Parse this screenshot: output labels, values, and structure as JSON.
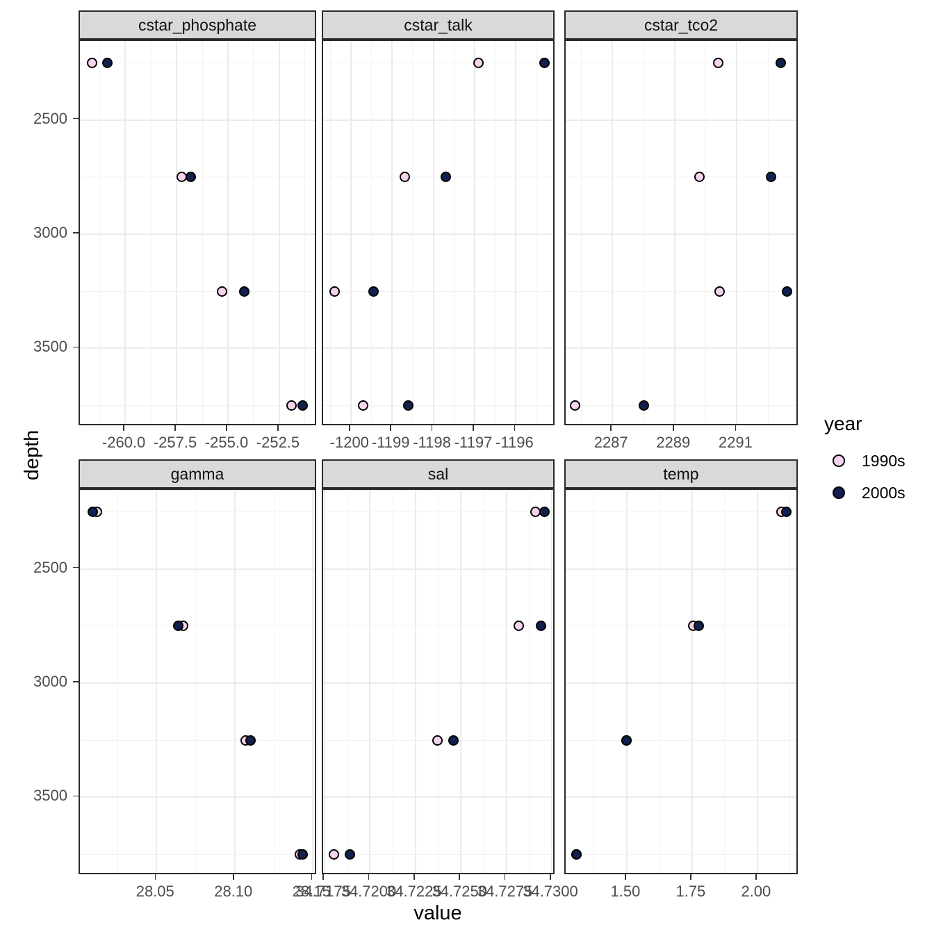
{
  "chart_data": {
    "type": "scatter",
    "title": "",
    "xlabel": "value",
    "ylabel": "depth",
    "facet_layout": {
      "rows": 2,
      "cols": 3
    },
    "legend": {
      "title": "year",
      "position": "right",
      "entries": [
        {
          "label": "1990s",
          "color": "#f6d3ec"
        },
        {
          "label": "2000s",
          "color": "#11204d"
        }
      ]
    },
    "style": {
      "point_outline": "#000000",
      "grid_major": "#ebebeb",
      "grid_minor": "#f3f3f3",
      "panel_border": "#2b2b2b",
      "strip_bg": "#d9d9d9",
      "tick_text": "#4d4d4d"
    },
    "y_axis": {
      "label": "depth",
      "reversed": true,
      "domain": [
        2154,
        3843
      ],
      "ticks": [
        2500,
        3000,
        3500
      ],
      "tick_labels": [
        "2500",
        "3000",
        "3500"
      ]
    },
    "depths": [
      2250,
      2750,
      3250,
      3750
    ],
    "facets": [
      {
        "name": "cstar_phosphate",
        "x_domain": [
          -262.2,
          -250.64
        ],
        "x_ticks": [
          -260.0,
          -257.5,
          -255.0,
          -252.5
        ],
        "x_tick_labels": [
          "-260.0",
          "-257.5",
          "-255.0",
          "-252.5"
        ],
        "series": [
          {
            "name": "1990s",
            "values": [
              -261.6,
              -257.25,
              -255.3,
              -251.9
            ]
          },
          {
            "name": "2000s",
            "values": [
              -260.85,
              -256.8,
              -254.2,
              -251.35
            ]
          }
        ]
      },
      {
        "name": "cstar_talk",
        "x_domain": [
          -1200.67,
          -1195.03
        ],
        "x_ticks": [
          -1200,
          -1199,
          -1198,
          -1197,
          -1196
        ],
        "x_tick_labels": [
          "-1200",
          "-1199",
          "-1198",
          "-1197",
          "-1196"
        ],
        "series": [
          {
            "name": "1990s",
            "values": [
              -1196.9,
              -1198.7,
              -1200.4,
              -1199.7
            ]
          },
          {
            "name": "2000s",
            "values": [
              -1195.3,
              -1197.7,
              -1199.45,
              -1198.6
            ]
          }
        ]
      },
      {
        "name": "cstar_tco2",
        "x_domain": [
          2285.5,
          2293.0
        ],
        "x_ticks": [
          2287,
          2289,
          2291
        ],
        "x_tick_labels": [
          "2287",
          "2289",
          "2291"
        ],
        "series": [
          {
            "name": "1990s",
            "values": [
              2290.4,
              2289.8,
              2290.45,
              2285.8
            ]
          },
          {
            "name": "2000s",
            "values": [
              2292.4,
              2292.1,
              2292.6,
              2288.0
            ]
          }
        ]
      },
      {
        "name": "gamma",
        "x_domain": [
          28.001,
          28.153
        ],
        "x_ticks": [
          28.05,
          28.1,
          28.15
        ],
        "x_tick_labels": [
          "28.05",
          "28.10",
          "28.15"
        ],
        "series": [
          {
            "name": "1990s",
            "values": [
              28.012,
              28.067,
              28.107,
              28.1415
            ]
          },
          {
            "name": "2000s",
            "values": [
              28.009,
              28.064,
              28.11,
              28.1435
            ]
          }
        ]
      },
      {
        "name": "sal",
        "x_domain": [
          34.71742,
          34.73023
        ],
        "x_ticks": [
          34.7175,
          34.72,
          34.7225,
          34.725,
          34.7275,
          34.73
        ],
        "x_tick_labels": [
          "34.7175",
          "34.7200",
          "34.7225",
          "34.7250",
          "34.7275",
          "34.7300"
        ],
        "series": [
          {
            "name": "1990s",
            "values": [
              34.7291,
              34.7282,
              34.7237,
              34.718
            ]
          },
          {
            "name": "2000s",
            "values": [
              34.7296,
              34.7294,
              34.7246,
              34.7189
            ]
          }
        ]
      },
      {
        "name": "temp",
        "x_domain": [
          1.266,
          2.16
        ],
        "x_ticks": [
          1.5,
          1.75,
          2.0
        ],
        "x_tick_labels": [
          "1.50",
          "1.75",
          "2.00"
        ],
        "series": [
          {
            "name": "1990s",
            "values": [
              2.092,
              1.753,
              1.498,
              1.307
            ]
          },
          {
            "name": "2000s",
            "values": [
              2.112,
              1.775,
              1.498,
              1.307
            ]
          }
        ]
      }
    ]
  }
}
